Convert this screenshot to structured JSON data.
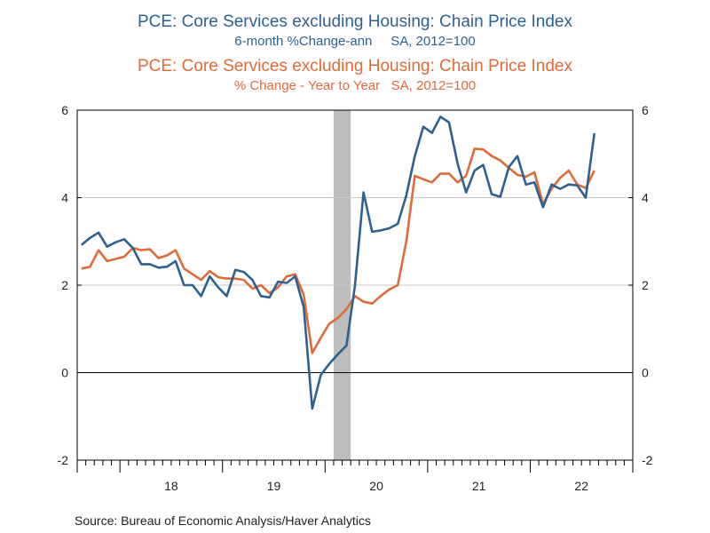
{
  "titles": {
    "series1_title": "PCE: Core Services excluding Housing: Chain Price Index",
    "series1_sub": "6-month %Change-ann     SA, 2012=100",
    "series2_title": "PCE: Core Services excluding Housing: Chain Price Index",
    "series2_sub": "% Change - Year to Year   SA, 2012=100"
  },
  "source": "Source:  Bureau of Economic Analysis/Haver Analytics",
  "colors": {
    "series1": "#2f6190",
    "series2": "#e06a3a",
    "recession": "#bdbdbd",
    "grid": "#c8c8c8"
  },
  "chart_data": {
    "type": "line",
    "x_unit": "month",
    "x_start": "2017-08",
    "x_end": "2022-12",
    "xtick_labels": [
      "18",
      "19",
      "20",
      "21",
      "22"
    ],
    "ylim": [
      -2,
      6
    ],
    "yticks": [
      "-2",
      "0",
      "2",
      "4",
      "6"
    ],
    "grid": true,
    "recession_shading": {
      "start": "2020-02",
      "end": "2020-04"
    },
    "series": [
      {
        "values": [
          2.92,
          3.08,
          3.2,
          2.88,
          2.98,
          3.05,
          2.85,
          2.48,
          2.48,
          2.4,
          2.42,
          2.55,
          2.0,
          2.0,
          1.75,
          2.2,
          1.95,
          1.75,
          2.35,
          2.3,
          2.12,
          1.75,
          1.72,
          2.08,
          2.05,
          2.2,
          1.5,
          -0.82,
          -0.05,
          0.2,
          0.42,
          0.62,
          2.0,
          4.12,
          3.22,
          3.25,
          3.3,
          3.4,
          4.05,
          4.95,
          5.62,
          5.48,
          5.85,
          5.72,
          4.78,
          4.12,
          4.62,
          4.75,
          4.08,
          4.02,
          4.7,
          4.95,
          4.3,
          4.35,
          3.78,
          4.3,
          4.2,
          4.3,
          4.28,
          4.0,
          5.47
        ]
      },
      {
        "values": [
          2.38,
          2.42,
          2.8,
          2.55,
          2.6,
          2.65,
          2.85,
          2.8,
          2.82,
          2.62,
          2.68,
          2.8,
          2.38,
          2.25,
          2.12,
          2.32,
          2.18,
          2.15,
          2.15,
          2.12,
          1.92,
          2.0,
          1.82,
          1.95,
          2.2,
          2.25,
          1.78,
          0.45,
          0.8,
          1.12,
          1.25,
          1.45,
          1.75,
          1.62,
          1.58,
          1.75,
          1.9,
          2.0,
          3.0,
          4.5,
          4.42,
          4.35,
          4.55,
          4.55,
          4.35,
          4.5,
          5.12,
          5.1,
          4.95,
          4.85,
          4.68,
          4.52,
          4.48,
          4.58,
          3.85,
          4.2,
          4.45,
          4.62,
          4.3,
          4.22,
          4.62
        ]
      }
    ]
  }
}
